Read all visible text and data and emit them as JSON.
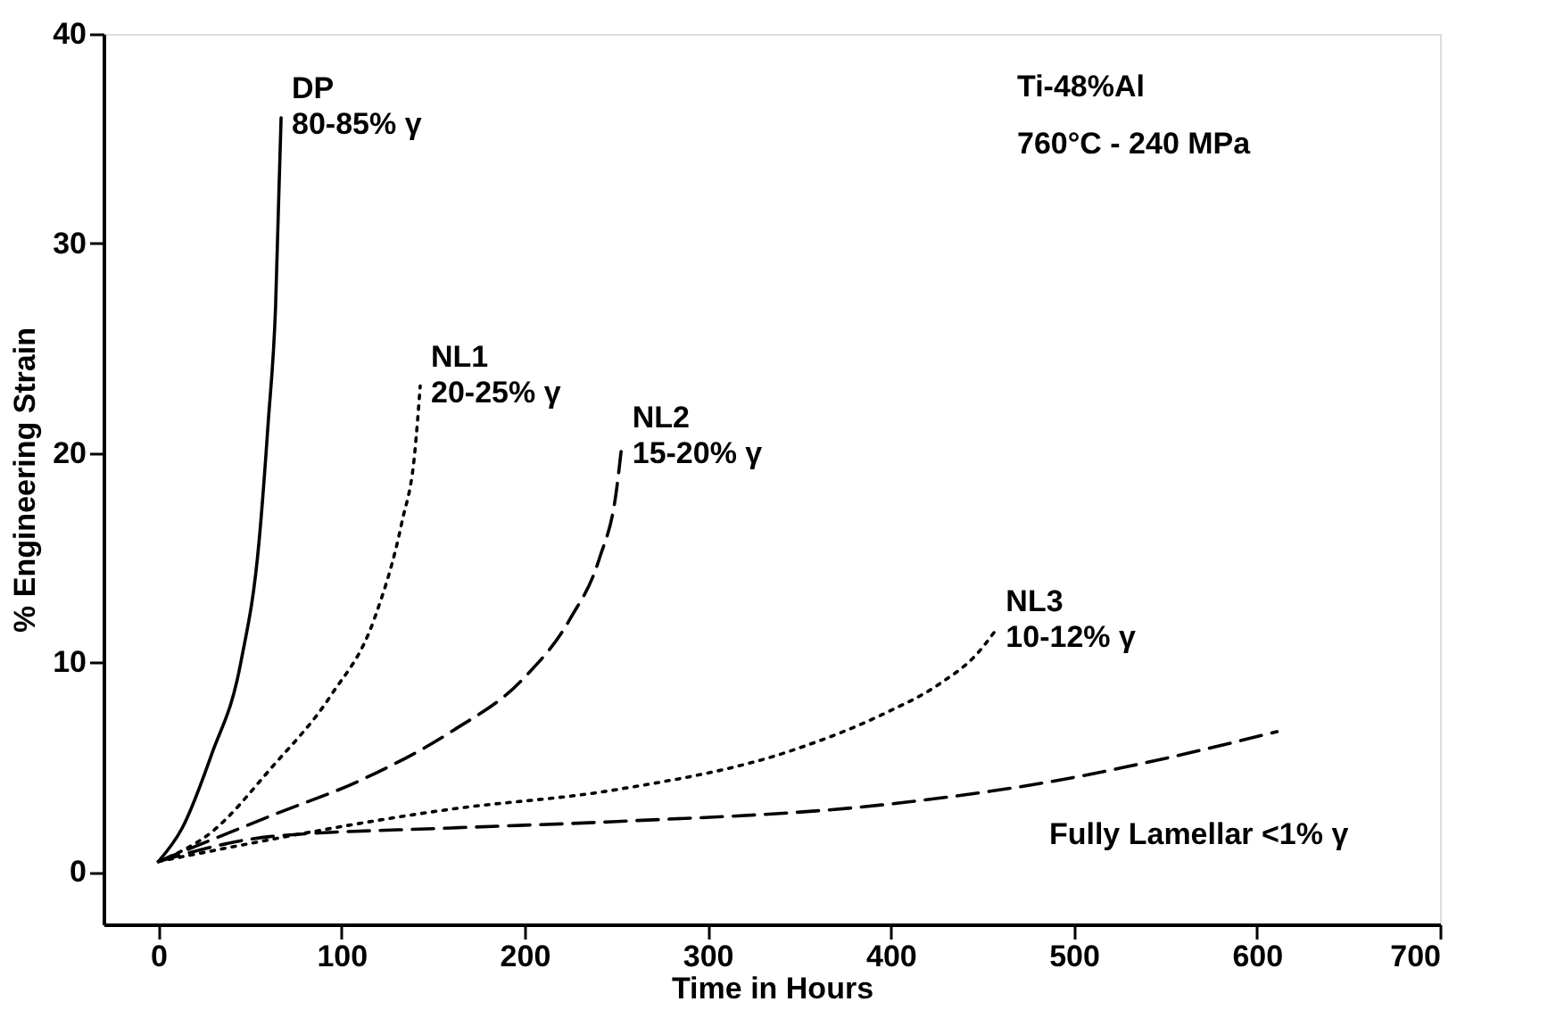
{
  "chart_data": {
    "type": "line",
    "xlabel": "Time in Hours",
    "ylabel": "% Engineering Strain",
    "xlim": [
      -30,
      700
    ],
    "ylim": [
      -2.5,
      40
    ],
    "xticks": [
      0,
      100,
      200,
      300,
      400,
      500,
      600,
      700
    ],
    "yticks": [
      0,
      10,
      20,
      30,
      40
    ],
    "grid": false,
    "marker": "none",
    "series": [
      {
        "name": "DP\n80-85% γ",
        "color": "#000000",
        "line_style": "solid",
        "x": [
          0,
          13,
          29,
          45,
          55,
          60,
          64,
          67
        ],
        "values": [
          0.5,
          2.1,
          5.6,
          10,
          15.8,
          21.5,
          27,
          36
        ]
      },
      {
        "name": "NL1\n20-25% γ",
        "color": "#000000",
        "line_style": "dotted",
        "x": [
          0,
          29,
          62,
          94,
          118,
          133,
          140,
          143
        ],
        "values": [
          0.5,
          1.9,
          5,
          8.4,
          12.1,
          16.7,
          20,
          23.2
        ]
      },
      {
        "name": "NL2\n15-20% γ",
        "color": "#000000",
        "line_style": "dashed",
        "x": [
          0,
          62,
          111,
          160,
          199,
          225,
          241,
          250,
          253
        ],
        "values": [
          0.5,
          2.7,
          4.4,
          6.7,
          9.2,
          12.1,
          15,
          18.1,
          20.3
        ]
      },
      {
        "name": "NL3\n10-12% γ",
        "color": "#000000",
        "line_style": "dotted",
        "x": [
          0,
          160,
          248,
          346,
          395,
          427,
          447,
          457
        ],
        "values": [
          0.5,
          3.0,
          3.9,
          5.8,
          7.5,
          9,
          10.4,
          11.5
        ]
      },
      {
        "name": "Fully Lamellar <1% γ",
        "color": "#000000",
        "line_style": "dashed",
        "x": [
          0,
          62,
          160,
          248,
          395,
          493,
          559,
          611
        ],
        "values": [
          0.5,
          1.7,
          2.1,
          2.4,
          3.2,
          4.4,
          5.6,
          6.7
        ]
      }
    ],
    "annotations": [
      "Ti-48%Al",
      "760°C - 240 MPa"
    ]
  }
}
